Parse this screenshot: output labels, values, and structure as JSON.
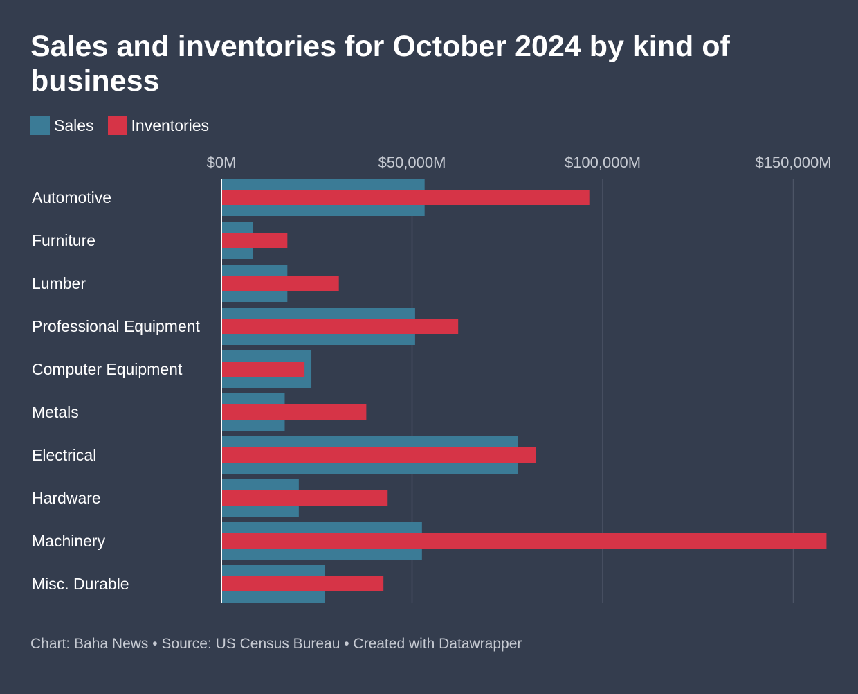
{
  "title": "Sales and inventories for October 2024 by kind of business",
  "footer": "Chart: Baha News • Source: US Census Bureau • Created with Datawrapper",
  "colors": {
    "background": "#343d4e",
    "sales": "#3b7b96",
    "inventories": "#d63447",
    "gridline": "#4c5566",
    "axis_label": "#c6cad2"
  },
  "chart_data": {
    "type": "bar",
    "orientation": "horizontal",
    "title": "Sales and inventories for October 2024 by kind of business",
    "categories": [
      "Automotive",
      "Furniture",
      "Lumber",
      "Professional Equipment",
      "Computer Equipment",
      "Metals",
      "Electrical",
      "Hardware",
      "Machinery",
      "Misc. Durable"
    ],
    "series": [
      {
        "name": "Sales",
        "values": [
          53300,
          8300,
          17300,
          50800,
          23600,
          16600,
          77700,
          20300,
          52600,
          27200
        ]
      },
      {
        "name": "Inventories",
        "values": [
          96500,
          17300,
          30800,
          62100,
          21800,
          38000,
          82400,
          43600,
          158700,
          42500
        ]
      }
    ],
    "xlim": [
      0,
      160000
    ],
    "ticks": [
      0,
      50000,
      100000,
      150000
    ],
    "tick_labels": [
      "$0M",
      "$50,000M",
      "$100,000M",
      "$150,000M"
    ],
    "grid": true,
    "legend_position": "top-left",
    "xlabel": "",
    "ylabel": ""
  }
}
